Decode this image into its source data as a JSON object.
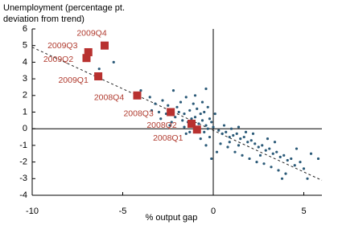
{
  "chart_data": {
    "type": "scatter",
    "ylabel": [
      "Unemployment (percentage pt.",
      "deviation from trend)"
    ],
    "xlabel": "% output gap",
    "xlim": [
      -10,
      6
    ],
    "xticks": [
      -10,
      -5,
      0,
      5
    ],
    "ylim": [
      -4,
      6
    ],
    "yticks": [
      -4,
      -3,
      -2,
      -1,
      0,
      1,
      2,
      3,
      4,
      5,
      6
    ],
    "trend_line": {
      "x": [
        -10,
        6
      ],
      "y": [
        4.9,
        -3.1
      ]
    },
    "series": [
      {
        "color": "#2b5a78",
        "x": [
          -5.5,
          -6.3,
          -4.0,
          -3.5,
          -3.2,
          -2.8,
          -2.5,
          -2.2,
          -2.0,
          -1.8,
          -1.5,
          -1.3,
          -1.1,
          -0.9,
          -0.7,
          -0.5,
          -0.3,
          -0.2,
          0.1,
          -2.6,
          -2.1,
          -1.7,
          -1.4,
          -1.0,
          -0.8,
          -0.6,
          -0.4,
          -0.1,
          -1.9,
          -1.6,
          -1.2,
          -0.9,
          -0.5,
          -0.3,
          0.0,
          0.3,
          0.5,
          0.7,
          0.9,
          1.1,
          1.3,
          1.5,
          1.7,
          1.9,
          2.1,
          2.3,
          2.5,
          2.7,
          2.9,
          3.1,
          3.3,
          3.5,
          3.7,
          3.9,
          4.1,
          4.3,
          4.5,
          4.8,
          5.0,
          5.4,
          5.8,
          4.0,
          3.6,
          3.2,
          2.8,
          2.4,
          2.0,
          1.6,
          1.2,
          0.8,
          0.4,
          2.2,
          1.8,
          3.0,
          3.4,
          0.6,
          1.0,
          1.4,
          -0.2,
          -0.4,
          -0.7,
          -1.3,
          -1.6,
          -2.3,
          -2.9,
          -3.4,
          -3.0,
          0.2,
          -0.1,
          4.6,
          5.2,
          3.8,
          2.6,
          1.4,
          0.9,
          -0.6,
          -1.0,
          -0.4,
          -2.4,
          -1.5
        ],
        "y": [
          4.0,
          3.6,
          2.3,
          1.9,
          1.5,
          1.7,
          1.4,
          2.3,
          1.3,
          1.6,
          1.9,
          1.1,
          1.5,
          1.2,
          0.9,
          1.0,
          1.3,
          0.6,
          0.9,
          0.9,
          0.7,
          0.5,
          0.4,
          0.7,
          0.3,
          0.5,
          0.2,
          0.4,
          1.0,
          0.9,
          0.6,
          0.1,
          -0.2,
          0.0,
          0.1,
          -0.1,
          -0.3,
          -0.2,
          -0.5,
          -0.4,
          -0.3,
          -0.6,
          -0.5,
          -0.8,
          -0.7,
          -0.9,
          -1.1,
          -1.0,
          -1.3,
          -1.2,
          -1.5,
          -1.4,
          -1.7,
          -1.6,
          -1.9,
          -1.8,
          -2.2,
          -2.0,
          -2.4,
          -1.5,
          -1.8,
          -2.7,
          -2.5,
          -2.3,
          -2.1,
          -2.0,
          -1.8,
          -1.6,
          -1.4,
          -1.1,
          -0.9,
          -0.3,
          -0.2,
          -0.6,
          -0.8,
          0.2,
          0.0,
          0.1,
          -0.5,
          -1.0,
          -0.6,
          -0.2,
          0.1,
          0.4,
          0.6,
          1.1,
          1.0,
          -1.4,
          -1.8,
          -1.2,
          -3.0,
          -3.0,
          -1.6,
          -1.0,
          -0.8,
          1.6,
          2.0,
          2.4,
          0.2,
          -0.3
        ]
      },
      {
        "color": "#b8312f",
        "labels": [
          "2009Q4",
          "2009Q3",
          "2009Q2",
          "2009Q1",
          "2008Q4",
          "2008Q3",
          "2008Q2",
          "2008Q1"
        ],
        "x": [
          -6.0,
          -6.9,
          -7.0,
          -6.35,
          -4.2,
          -2.35,
          -1.2,
          -0.9
        ],
        "y": [
          5.0,
          4.6,
          4.25,
          3.15,
          2.0,
          1.0,
          0.3,
          -0.05
        ]
      }
    ]
  }
}
